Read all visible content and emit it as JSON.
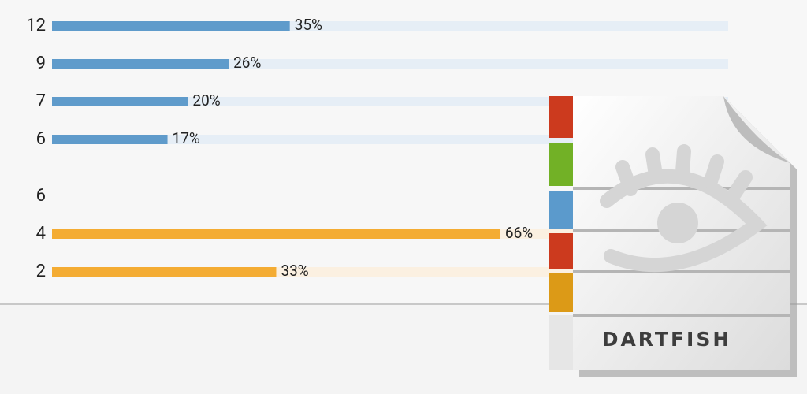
{
  "groups": [
    {
      "color": "#5f9bcb",
      "track_color": "#e6eef6",
      "rows": [
        {
          "label": "12",
          "value": 35,
          "value_label": "35%"
        },
        {
          "label": "9",
          "value": 26,
          "value_label": "26%"
        },
        {
          "label": "7",
          "value": 20,
          "value_label": "20%"
        },
        {
          "label": "6",
          "value": 17,
          "value_label": "17%"
        }
      ]
    },
    {
      "title": "6",
      "color": "#f4ac33",
      "track_color": "#fbf0e1",
      "rows": [
        {
          "label": "4",
          "value": 66,
          "value_label": "66%"
        },
        {
          "label": "2",
          "value": 33,
          "value_label": "33%"
        }
      ]
    }
  ],
  "logo": {
    "text": "DARTFISH"
  }
}
